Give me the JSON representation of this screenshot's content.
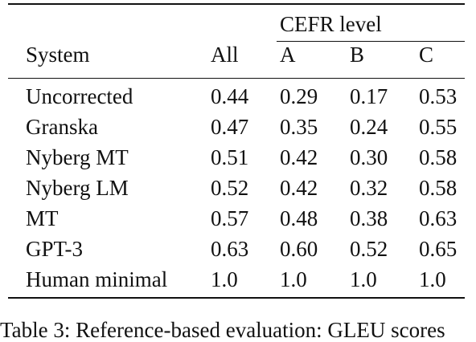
{
  "table": {
    "group_header": "CEFR level",
    "columns": [
      "System",
      "All",
      "A",
      "B",
      "C"
    ],
    "rows": [
      {
        "system": "Uncorrected",
        "all": "0.44",
        "a": "0.29",
        "b": "0.17",
        "c": "0.53"
      },
      {
        "system": "Granska",
        "all": "0.47",
        "a": "0.35",
        "b": "0.24",
        "c": "0.55"
      },
      {
        "system": "Nyberg MT",
        "all": "0.51",
        "a": "0.42",
        "b": "0.30",
        "c": "0.58"
      },
      {
        "system": "Nyberg LM",
        "all": "0.52",
        "a": "0.42",
        "b": "0.32",
        "c": "0.58"
      },
      {
        "system": "MT",
        "all": "0.57",
        "a": "0.48",
        "b": "0.38",
        "c": "0.63"
      },
      {
        "system": "GPT-3",
        "all": "0.63",
        "a": "0.60",
        "b": "0.52",
        "c": "0.65"
      },
      {
        "system": "Human minimal",
        "all": "1.0",
        "a": "1.0",
        "b": "1.0",
        "c": "1.0"
      }
    ]
  },
  "caption": "Table 3: Reference-based evaluation: GLEU scores"
}
